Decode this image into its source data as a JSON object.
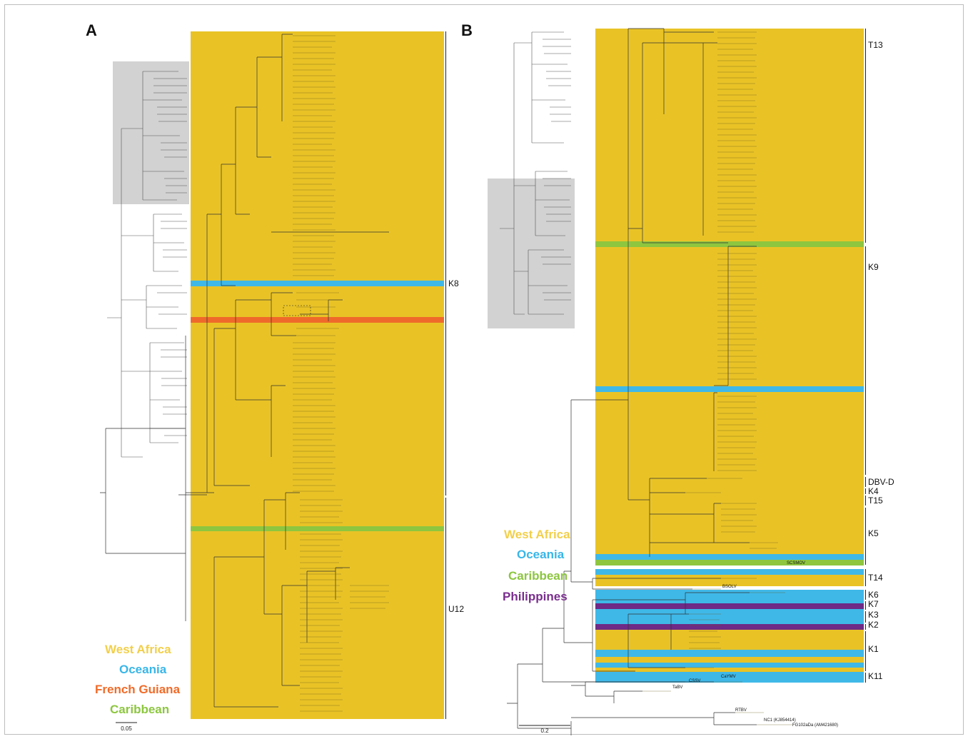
{
  "panel_a": {
    "letter": "A",
    "scale_label": "0.05",
    "clades": [
      {
        "id": "K8",
        "label": "K8"
      },
      {
        "id": "U12",
        "label": "U12"
      }
    ],
    "legend": [
      {
        "label": "West Africa",
        "color": "#f2cf4a"
      },
      {
        "label": "Oceania",
        "color": "#38b6e8"
      },
      {
        "label": "French Guiana",
        "color": "#f06b29"
      },
      {
        "label": "Caribbean",
        "color": "#8cc63f"
      }
    ]
  },
  "panel_b": {
    "letter": "B",
    "scale_label": "0.2",
    "clades": [
      {
        "id": "T13",
        "label": "T13"
      },
      {
        "id": "K9",
        "label": "K9"
      },
      {
        "id": "DBV-D",
        "label": "DBV-D"
      },
      {
        "id": "K4",
        "label": "K4"
      },
      {
        "id": "T15",
        "label": "T15"
      },
      {
        "id": "K5",
        "label": "K5"
      },
      {
        "id": "T14",
        "label": "T14"
      },
      {
        "id": "K6",
        "label": "K6"
      },
      {
        "id": "K7",
        "label": "K7"
      },
      {
        "id": "K3",
        "label": "K3"
      },
      {
        "id": "K2",
        "label": "K2"
      },
      {
        "id": "K1",
        "label": "K1"
      },
      {
        "id": "K11",
        "label": "K11"
      }
    ],
    "legend": [
      {
        "label": "West Africa",
        "color": "#f2cf4a"
      },
      {
        "label": "Oceania",
        "color": "#38b6e8"
      },
      {
        "label": "Caribbean",
        "color": "#8cc63f"
      },
      {
        "label": "Philippines",
        "color": "#7a2e8e"
      }
    ],
    "outgroups": [
      "SCSMOV",
      "BSOLV",
      "CaYMV",
      "CSSV",
      "TaBV",
      "RTBV",
      "NC1 (KJ854414)",
      "FG102aDa (AM421680)"
    ]
  },
  "colors": {
    "west_africa": "#e9c326",
    "oceania": "#3fb8e8",
    "french_guiana": "#ef6a2a",
    "caribbean": "#8ec63f",
    "philippines": "#6e2a86",
    "branch": "#333333"
  }
}
